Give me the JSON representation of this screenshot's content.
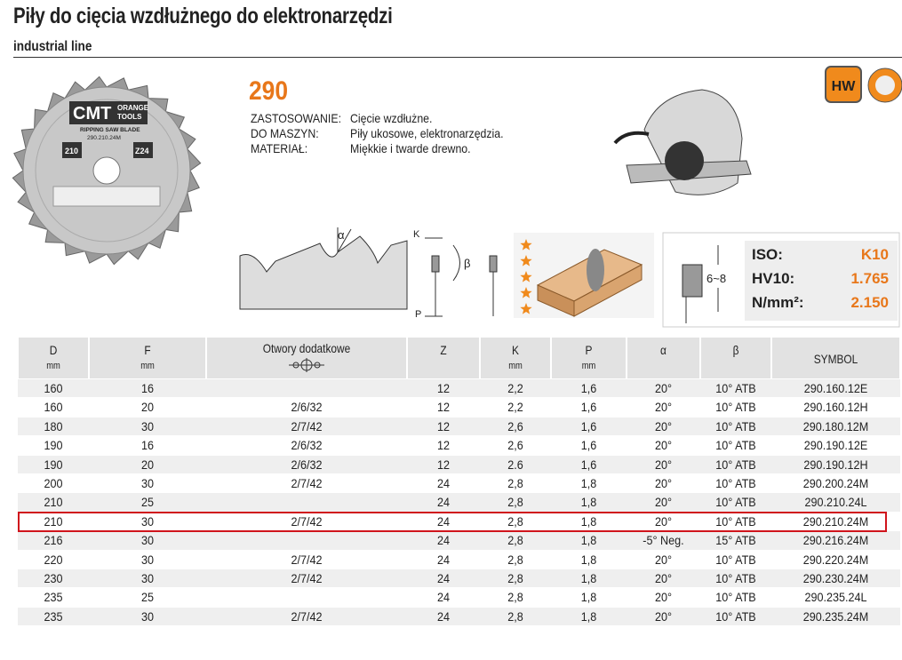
{
  "header": {
    "title": "Piły do cięcia wzdłużnego do elektronarzędzi",
    "subtitle": "industrial line"
  },
  "product": {
    "code": "290",
    "specs": [
      {
        "label": "ZASTOSOWANIE:",
        "value": "Cięcie wzdłużne."
      },
      {
        "label": "DO MASZYN:",
        "value": "Piły ukosowe, elektronarzędzia."
      },
      {
        "label": "MATERIAŁ:",
        "value": "Miękkie i twarde drewno."
      }
    ]
  },
  "badge": "HW",
  "blade_label": {
    "brand": "CMT",
    "brand_sub": [
      "ORANGE",
      "TOOLS"
    ],
    "type": "RIPPING SAW BLADE",
    "symbol": "290.210.24M",
    "diameter": "210",
    "teeth": "Z24"
  },
  "diagram_labels": {
    "alpha": "α",
    "k": "K",
    "beta": "β",
    "p": "P",
    "height": "6~8"
  },
  "hardness": [
    {
      "label": "ISO:",
      "value": "K10"
    },
    {
      "label": "HV10:",
      "value": "1.765"
    },
    {
      "label": "N/mm²:",
      "value": "2.150"
    }
  ],
  "table": {
    "columns": [
      {
        "name": "D",
        "unit": "mm"
      },
      {
        "name": "F",
        "unit": "mm"
      },
      {
        "name": "Otwory dodatkowe"
      },
      {
        "name": "Z"
      },
      {
        "name": "K",
        "unit": "mm"
      },
      {
        "name": "P",
        "unit": "mm"
      },
      {
        "name": "α"
      },
      {
        "name": "β"
      },
      {
        "name": "SYMBOL"
      }
    ],
    "rows": [
      [
        "160",
        "16",
        null,
        "12",
        "2,2",
        "1,6",
        "20°",
        "10° ATB",
        "290.160.12E"
      ],
      [
        "160",
        "20",
        "2/6/32",
        "12",
        "2,2",
        "1,6",
        "20°",
        "10° ATB",
        "290.160.12H"
      ],
      [
        "180",
        "30",
        "2/7/42",
        "12",
        "2,6",
        "1,6",
        "20°",
        "10° ATB",
        "290.180.12M"
      ],
      [
        "190",
        "16",
        "2/6/32",
        "12",
        "2,6",
        "1,6",
        "20°",
        "10° ATB",
        "290.190.12E"
      ],
      [
        "190",
        "20",
        "2/6/32",
        "12",
        "2.6",
        "1,6",
        "20°",
        "10° ATB",
        "290.190.12H"
      ],
      [
        "200",
        "30",
        "2/7/42",
        "24",
        "2,8",
        "1,8",
        "20°",
        "10° ATB",
        "290.200.24M"
      ],
      [
        "210",
        "25",
        null,
        "24",
        "2,8",
        "1,8",
        "20°",
        "10° ATB",
        "290.210.24L"
      ],
      [
        "210",
        "30",
        "2/7/42",
        "24",
        "2,8",
        "1,8",
        "20°",
        "10° ATB",
        "290.210.24M"
      ],
      [
        "216",
        "30",
        null,
        "24",
        "2,8",
        "1,8",
        "-5° Neg.",
        "15° ATB",
        "290.216.24M"
      ],
      [
        "220",
        "30",
        "2/7/42",
        "24",
        "2,8",
        "1,8",
        "20°",
        "10° ATB",
        "290.220.24M"
      ],
      [
        "230",
        "30",
        "2/7/42",
        "24",
        "2,8",
        "1,8",
        "20°",
        "10° ATB",
        "290.230.24M"
      ],
      [
        "235",
        "25",
        null,
        "24",
        "2,8",
        "1,8",
        "20°",
        "10° ATB",
        "290.235.24L"
      ],
      [
        "235",
        "30",
        "2/7/42",
        "24",
        "2,8",
        "1,8",
        "20°",
        "10° ATB",
        "290.235.24M"
      ]
    ]
  }
}
